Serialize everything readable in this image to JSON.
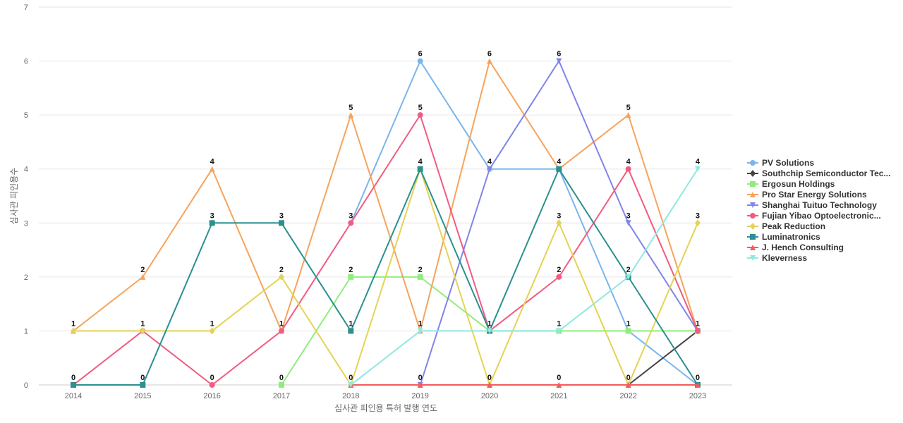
{
  "chart_data": {
    "type": "line",
    "title": "",
    "xlabel": "심사관 피인용 특허 발행 연도",
    "ylabel": "심사관 피인용수",
    "ylim": [
      0,
      7
    ],
    "yticks": [
      0,
      1,
      2,
      3,
      4,
      5,
      6,
      7
    ],
    "grid": true,
    "legend_position": "right",
    "x": [
      "2014",
      "2015",
      "2016",
      "2017",
      "2018",
      "2019",
      "2020",
      "2021",
      "2022",
      "2023"
    ],
    "series": [
      {
        "name": "PV Solutions",
        "color": "#7cb5ec",
        "marker": "circle",
        "values": [
          null,
          null,
          null,
          null,
          3,
          6,
          4,
          4,
          1,
          0
        ]
      },
      {
        "name": "Southchip Semiconductor Tec...",
        "color": "#434348",
        "marker": "diamond",
        "values": [
          null,
          null,
          null,
          null,
          null,
          null,
          null,
          null,
          0,
          1
        ]
      },
      {
        "name": "Ergosun Holdings",
        "color": "#90ed7d",
        "marker": "square",
        "values": [
          null,
          null,
          null,
          0,
          2,
          2,
          1,
          1,
          1,
          1
        ]
      },
      {
        "name": "Pro Star Energy Solutions",
        "color": "#f7a35c",
        "marker": "triangle",
        "values": [
          1,
          2,
          4,
          1,
          5,
          1,
          6,
          4,
          5,
          1
        ]
      },
      {
        "name": "Shanghai Tuituo Technology",
        "color": "#8085e9",
        "marker": "triangle-down",
        "values": [
          null,
          null,
          null,
          null,
          null,
          0,
          4,
          6,
          3,
          1
        ]
      },
      {
        "name": "Fujian Yibao Optoelectronic...",
        "color": "#f15c80",
        "marker": "circle",
        "values": [
          0,
          1,
          0,
          1,
          3,
          5,
          1,
          2,
          4,
          1
        ]
      },
      {
        "name": "Peak Reduction",
        "color": "#e4d354",
        "marker": "diamond",
        "values": [
          1,
          1,
          1,
          2,
          0,
          4,
          0,
          3,
          0,
          3
        ]
      },
      {
        "name": "Luminatronics",
        "color": "#2b908f",
        "marker": "square",
        "values": [
          0,
          0,
          3,
          3,
          1,
          4,
          1,
          4,
          2,
          0
        ]
      },
      {
        "name": "J. Hench Consulting",
        "color": "#f45b5b",
        "marker": "triangle",
        "values": [
          null,
          null,
          null,
          null,
          0,
          0,
          0,
          0,
          0,
          0
        ]
      },
      {
        "name": "Kleverness",
        "color": "#91e8e1",
        "marker": "triangle-down",
        "values": [
          null,
          null,
          null,
          null,
          0,
          1,
          1,
          1,
          2,
          4
        ]
      }
    ],
    "data_labels": [
      {
        "x": "2014",
        "y": 1,
        "text": "1"
      },
      {
        "x": "2014",
        "y": 0,
        "text": "0"
      },
      {
        "x": "2015",
        "y": 2,
        "text": "2"
      },
      {
        "x": "2015",
        "y": 1,
        "text": "1"
      },
      {
        "x": "2015",
        "y": 0,
        "text": "0"
      },
      {
        "x": "2016",
        "y": 4,
        "text": "4"
      },
      {
        "x": "2016",
        "y": 3,
        "text": "3"
      },
      {
        "x": "2016",
        "y": 1,
        "text": "1"
      },
      {
        "x": "2016",
        "y": 0,
        "text": "0"
      },
      {
        "x": "2017",
        "y": 3,
        "text": "3"
      },
      {
        "x": "2017",
        "y": 2,
        "text": "2"
      },
      {
        "x": "2017",
        "y": 1,
        "text": "1"
      },
      {
        "x": "2017",
        "y": 0,
        "text": "0"
      },
      {
        "x": "2018",
        "y": 5,
        "text": "5"
      },
      {
        "x": "2018",
        "y": 3,
        "text": "3"
      },
      {
        "x": "2018",
        "y": 2,
        "text": "2"
      },
      {
        "x": "2018",
        "y": 1,
        "text": "1"
      },
      {
        "x": "2018",
        "y": 0,
        "text": "0"
      },
      {
        "x": "2019",
        "y": 6,
        "text": "6"
      },
      {
        "x": "2019",
        "y": 5,
        "text": "5"
      },
      {
        "x": "2019",
        "y": 4,
        "text": "4"
      },
      {
        "x": "2019",
        "y": 2,
        "text": "2"
      },
      {
        "x": "2019",
        "y": 1,
        "text": "1"
      },
      {
        "x": "2019",
        "y": 0,
        "text": "0"
      },
      {
        "x": "2020",
        "y": 6,
        "text": "6"
      },
      {
        "x": "2020",
        "y": 4,
        "text": "4"
      },
      {
        "x": "2020",
        "y": 1,
        "text": "1"
      },
      {
        "x": "2020",
        "y": 0,
        "text": "0"
      },
      {
        "x": "2021",
        "y": 6,
        "text": "6"
      },
      {
        "x": "2021",
        "y": 4,
        "text": "4"
      },
      {
        "x": "2021",
        "y": 3,
        "text": "3"
      },
      {
        "x": "2021",
        "y": 2,
        "text": "2"
      },
      {
        "x": "2021",
        "y": 1,
        "text": "1"
      },
      {
        "x": "2021",
        "y": 0,
        "text": "0"
      },
      {
        "x": "2022",
        "y": 5,
        "text": "5"
      },
      {
        "x": "2022",
        "y": 4,
        "text": "4"
      },
      {
        "x": "2022",
        "y": 3,
        "text": "3"
      },
      {
        "x": "2022",
        "y": 2,
        "text": "2"
      },
      {
        "x": "2022",
        "y": 1,
        "text": "1"
      },
      {
        "x": "2022",
        "y": 0,
        "text": "0"
      },
      {
        "x": "2023",
        "y": 4,
        "text": "4"
      },
      {
        "x": "2023",
        "y": 3,
        "text": "3"
      },
      {
        "x": "2023",
        "y": 1,
        "text": "1"
      },
      {
        "x": "2023",
        "y": 0,
        "text": "0"
      }
    ]
  }
}
